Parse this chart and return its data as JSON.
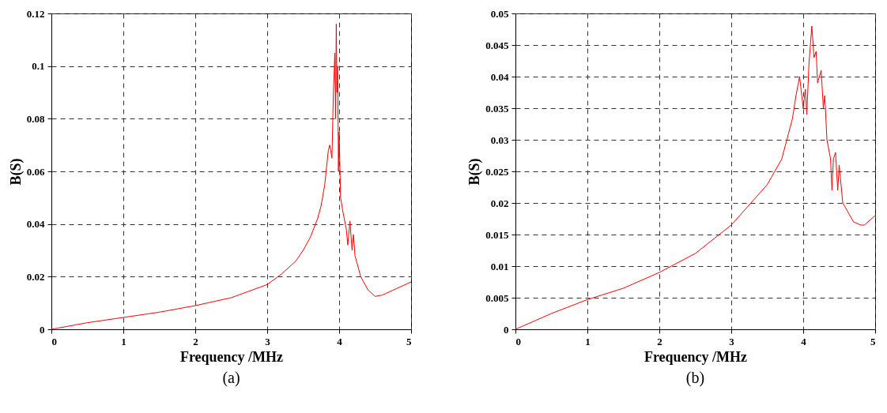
{
  "chart_data": [
    {
      "type": "line",
      "title": "(a)",
      "xlabel": "Frequency /MHz",
      "ylabel": "B(S)",
      "x": [
        0,
        0.5,
        1,
        1.5,
        2,
        2.5,
        3,
        3.2,
        3.4,
        3.5,
        3.6,
        3.7,
        3.75,
        3.8,
        3.85,
        3.87,
        3.9,
        3.92,
        3.94,
        3.95,
        3.96,
        3.97,
        3.98,
        3.99,
        4.0,
        4.02,
        4.05,
        4.1,
        4.12,
        4.15,
        4.18,
        4.2,
        4.22,
        4.3,
        4.4,
        4.5,
        4.6,
        4.8,
        5
      ],
      "series": [
        {
          "color": "#ff0000",
          "values": [
            0,
            0.0025,
            0.0045,
            0.0065,
            0.009,
            0.012,
            0.017,
            0.021,
            0.026,
            0.03,
            0.035,
            0.042,
            0.047,
            0.055,
            0.068,
            0.07,
            0.065,
            0.09,
            0.105,
            0.08,
            0.116,
            0.09,
            0.1,
            0.06,
            0.075,
            0.05,
            0.045,
            0.038,
            0.032,
            0.041,
            0.03,
            0.036,
            0.028,
            0.02,
            0.015,
            0.0125,
            0.013,
            0.0155,
            0.018
          ]
        }
      ],
      "xlim": [
        0,
        5
      ],
      "ylim": [
        0,
        0.12
      ],
      "xticks": [
        0,
        1,
        2,
        3,
        4,
        5
      ],
      "yticks": [
        0,
        0.02,
        0.04,
        0.06,
        0.08,
        0.1,
        0.12
      ],
      "grid": true,
      "line_style": "solid"
    },
    {
      "type": "line",
      "title": "(b)",
      "xlabel": "Frequency /MHz",
      "ylabel": "B(S)",
      "x": [
        0,
        0.5,
        1,
        1.5,
        2,
        2.5,
        3,
        3.5,
        3.7,
        3.85,
        3.9,
        3.95,
        4.0,
        4.03,
        4.05,
        4.08,
        4.1,
        4.12,
        4.15,
        4.18,
        4.2,
        4.25,
        4.28,
        4.3,
        4.33,
        4.38,
        4.4,
        4.42,
        4.45,
        4.48,
        4.5,
        4.55,
        4.6,
        4.7,
        4.8,
        4.85,
        4.9,
        5
      ],
      "series": [
        {
          "color": "#ff0000",
          "values": [
            0,
            0.0025,
            0.0047,
            0.0065,
            0.009,
            0.012,
            0.0165,
            0.0229,
            0.0269,
            0.0333,
            0.037,
            0.04,
            0.035,
            0.038,
            0.034,
            0.042,
            0.045,
            0.048,
            0.043,
            0.044,
            0.039,
            0.041,
            0.035,
            0.037,
            0.03,
            0.027,
            0.022,
            0.027,
            0.028,
            0.022,
            0.026,
            0.02,
            0.019,
            0.017,
            0.0165,
            0.0165,
            0.017,
            0.018
          ]
        }
      ],
      "xlim": [
        0,
        5
      ],
      "ylim": [
        0,
        0.05
      ],
      "xticks": [
        0,
        1,
        2,
        3,
        4,
        5
      ],
      "yticks": [
        0,
        0.005,
        0.01,
        0.015,
        0.02,
        0.025,
        0.03,
        0.035,
        0.04,
        0.045,
        0.05
      ],
      "grid": true,
      "line_style": "solid"
    }
  ]
}
